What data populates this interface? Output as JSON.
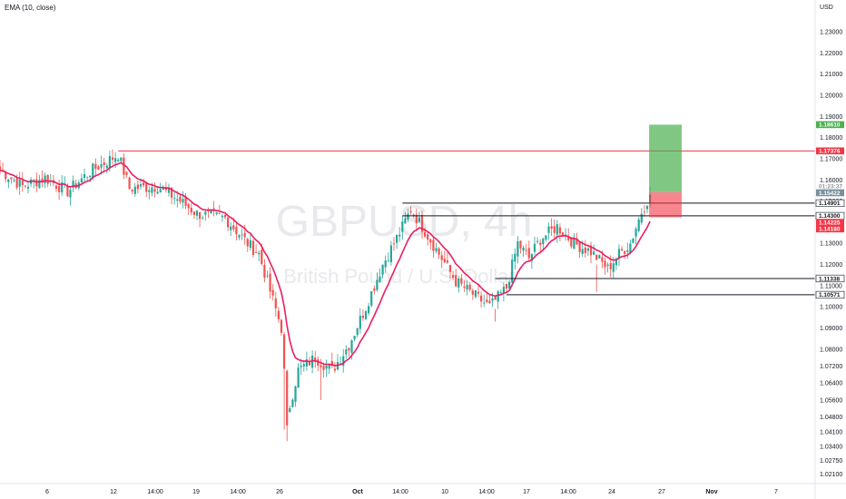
{
  "indicator_label": "EMA (10, close)",
  "currency_label": "USD",
  "watermark": {
    "symbol": "GBPUSD, 4h",
    "name": "British Pound / U.S. Dollar"
  },
  "colors": {
    "bull": "#26a69a",
    "bear": "#ef5350",
    "ema": "#e91e63",
    "resistance_line": "#f23645",
    "tp_zone": "#4caf50",
    "sl_zone": "#f23645"
  },
  "chart_data": {
    "type": "candlestick",
    "title": "",
    "ylim": [
      1.0165,
      1.245
    ],
    "y_ticks": [
      "1.23000",
      "1.22000",
      "1.21000",
      "1.20000",
      "1.19000",
      "1.18000",
      "1.17000",
      "1.16000",
      "1.15000",
      "1.14000",
      "1.13000",
      "1.12000",
      "1.11000",
      "1.10000",
      "1.09000",
      "1.08000",
      "1.07200",
      "1.06400",
      "1.05600",
      "1.04800",
      "1.04100",
      "1.03400",
      "1.02750",
      "1.02100"
    ],
    "x_ticks": [
      "6",
      "12",
      "14:00",
      "19",
      "14:00",
      "26",
      "Oct",
      "14:00",
      "10",
      "14:00",
      "17",
      "14:00",
      "24",
      "27",
      "Nov",
      "7"
    ],
    "close_anchors": [
      {
        "i": 0,
        "v": 1.1645
      },
      {
        "i": 8,
        "v": 1.157
      },
      {
        "i": 16,
        "v": 1.161
      },
      {
        "i": 24,
        "v": 1.1545
      },
      {
        "i": 32,
        "v": 1.164
      },
      {
        "i": 42,
        "v": 1.172
      },
      {
        "i": 46,
        "v": 1.156
      },
      {
        "i": 56,
        "v": 1.157
      },
      {
        "i": 64,
        "v": 1.15
      },
      {
        "i": 70,
        "v": 1.144
      },
      {
        "i": 80,
        "v": 1.142
      },
      {
        "i": 88,
        "v": 1.13
      },
      {
        "i": 92,
        "v": 1.125
      },
      {
        "i": 100,
        "v": 1.09
      },
      {
        "i": 102,
        "v": 1.048
      },
      {
        "i": 106,
        "v": 1.07
      },
      {
        "i": 112,
        "v": 1.076
      },
      {
        "i": 118,
        "v": 1.07
      },
      {
        "i": 124,
        "v": 1.082
      },
      {
        "i": 130,
        "v": 1.1
      },
      {
        "i": 136,
        "v": 1.12
      },
      {
        "i": 142,
        "v": 1.135
      },
      {
        "i": 146,
        "v": 1.146
      },
      {
        "i": 150,
        "v": 1.138
      },
      {
        "i": 156,
        "v": 1.125
      },
      {
        "i": 162,
        "v": 1.112
      },
      {
        "i": 168,
        "v": 1.106
      },
      {
        "i": 174,
        "v": 1.1
      },
      {
        "i": 180,
        "v": 1.109
      },
      {
        "i": 184,
        "v": 1.13
      },
      {
        "i": 188,
        "v": 1.123
      },
      {
        "i": 192,
        "v": 1.132
      },
      {
        "i": 198,
        "v": 1.138
      },
      {
        "i": 204,
        "v": 1.13
      },
      {
        "i": 210,
        "v": 1.126
      },
      {
        "i": 216,
        "v": 1.118
      },
      {
        "i": 220,
        "v": 1.125
      },
      {
        "i": 224,
        "v": 1.13
      },
      {
        "i": 228,
        "v": 1.145
      },
      {
        "i": 231,
        "v": 1.153
      }
    ],
    "candle_count": 232,
    "ema": {
      "name": "EMA (10, close)",
      "period": 10
    },
    "hlines": [
      {
        "value": 1.1737,
        "start_index": 42,
        "label": "1.17376",
        "style": "resistance"
      },
      {
        "value": 1.149,
        "start_index": 143,
        "label": "1.14901",
        "style": "level"
      },
      {
        "value": 1.143,
        "start_index": 143,
        "label": "1.14300",
        "style": "level"
      },
      {
        "value": 1.1134,
        "start_index": 176,
        "label": "1.11338",
        "style": "level"
      },
      {
        "value": 1.1057,
        "start_index": 180,
        "label": "1.10571",
        "style": "level"
      }
    ],
    "position": {
      "entry": 1.1542,
      "take_profit": 1.1861,
      "stop_loss": 1.1423,
      "start_index": 231,
      "bars_wide": 9
    },
    "price_tags": [
      {
        "value": 1.1861,
        "label": "1.18610",
        "kind": "tp"
      },
      {
        "value": 1.1737,
        "label": "1.17376",
        "kind": "red"
      },
      {
        "value": 1.157,
        "label": "01:23:37",
        "kind": "timer"
      },
      {
        "value": 1.1542,
        "label": "1.15422",
        "kind": "entry"
      },
      {
        "value": 1.149,
        "label": "1.14901",
        "kind": "black"
      },
      {
        "value": 1.143,
        "label": "1.14300",
        "kind": "black"
      },
      {
        "value": 1.1423,
        "label": "1.14225",
        "kind": "red"
      },
      {
        "value": 1.1418,
        "label": "1.14180",
        "kind": "red"
      },
      {
        "value": 1.1134,
        "label": "1.11338",
        "kind": "black"
      },
      {
        "value": 1.1057,
        "label": "1.10571",
        "kind": "black"
      }
    ]
  }
}
